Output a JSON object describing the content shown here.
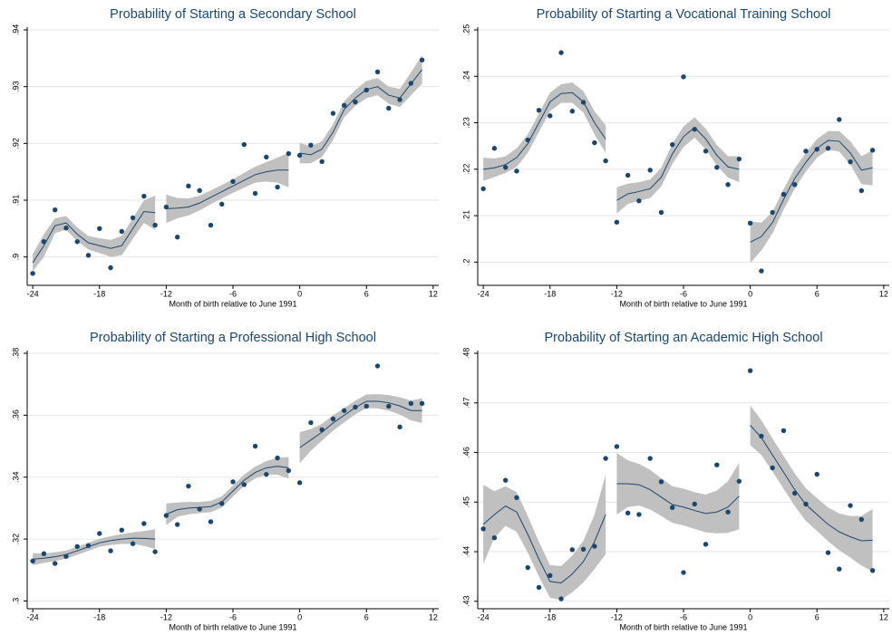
{
  "chart_data": [
    {
      "type": "scatter",
      "title": "Probability of Starting a Secondary School",
      "x_label": "Month of birth relative to June 1991",
      "x": [
        -24,
        -23,
        -22,
        -21,
        -20,
        -19,
        -18,
        -17,
        -16,
        -15,
        -14,
        -13,
        -12,
        -11,
        -10,
        -9,
        -8,
        -7,
        -6,
        -5,
        -4,
        -3,
        -2,
        -1,
        0,
        1,
        2,
        3,
        4,
        5,
        6,
        7,
        8,
        9,
        10,
        11
      ],
      "values": [
        0.8971,
        0.9027,
        0.9083,
        0.9051,
        0.9027,
        0.9003,
        0.905,
        0.8981,
        0.9045,
        0.9069,
        0.9107,
        0.9056,
        0.9088,
        0.9035,
        0.9125,
        0.9117,
        0.9056,
        0.9093,
        0.9133,
        0.9198,
        0.9112,
        0.9176,
        0.9123,
        0.9182,
        0.9179,
        0.9197,
        0.9168,
        0.9253,
        0.9267,
        0.9273,
        0.9294,
        0.9326,
        0.9262,
        0.9277,
        0.9306,
        0.9347
      ],
      "fit_x": [
        -24,
        -23,
        -22,
        -21,
        -20,
        -19,
        -18,
        -17,
        -16,
        -15,
        -14,
        -13,
        null,
        -12,
        -11,
        -10,
        -9,
        -8,
        -7,
        -6,
        -5,
        -4,
        -3,
        -2,
        -1,
        null,
        0,
        1,
        2,
        3,
        4,
        5,
        6,
        7,
        8,
        9,
        10,
        11
      ],
      "fit": [
        0.899,
        0.902,
        0.9055,
        0.906,
        0.904,
        0.9025,
        0.902,
        0.9015,
        0.902,
        0.905,
        0.908,
        0.9078,
        null,
        0.9085,
        0.9086,
        0.9088,
        0.9095,
        0.9105,
        0.9115,
        0.9125,
        0.9135,
        0.9145,
        0.915,
        0.9153,
        0.9153,
        null,
        0.9183,
        0.918,
        0.919,
        0.922,
        0.926,
        0.928,
        0.9295,
        0.93,
        0.9285,
        0.928,
        0.9305,
        0.933
      ],
      "ci_low": [
        0.8975,
        0.9,
        0.9042,
        0.9048,
        0.9028,
        0.9013,
        0.9007,
        0.9,
        0.9003,
        0.9032,
        0.906,
        0.9048,
        null,
        0.906,
        0.9068,
        0.9073,
        0.9082,
        0.9093,
        0.9103,
        0.9113,
        0.9122,
        0.9131,
        0.9133,
        0.9131,
        0.9123,
        null,
        0.9165,
        0.9165,
        0.9176,
        0.9206,
        0.9246,
        0.9266,
        0.928,
        0.9285,
        0.927,
        0.9264,
        0.9285,
        0.9305
      ],
      "ci_high": [
        0.9005,
        0.904,
        0.9068,
        0.9072,
        0.9052,
        0.9037,
        0.9033,
        0.903,
        0.9037,
        0.9068,
        0.91,
        0.9108,
        null,
        0.911,
        0.9104,
        0.9103,
        0.9108,
        0.9117,
        0.9127,
        0.9137,
        0.9148,
        0.9159,
        0.9167,
        0.9175,
        0.9183,
        null,
        0.9201,
        0.9195,
        0.9204,
        0.9234,
        0.9274,
        0.9294,
        0.931,
        0.9315,
        0.93,
        0.9296,
        0.9325,
        0.9355
      ],
      "xlim": [
        -24.5,
        12.5
      ],
      "xticks": [
        -24,
        -18,
        -12,
        -6,
        0,
        6,
        12
      ],
      "ylim": [
        0.895,
        0.94
      ],
      "yticks": [
        {
          "value": 0.9,
          "label": ".9"
        },
        {
          "value": 0.91,
          "label": ".91"
        },
        {
          "value": 0.92,
          "label": ".92"
        },
        {
          "value": 0.93,
          "label": ".93"
        },
        {
          "value": 0.94,
          "label": ".94"
        }
      ],
      "grid": true,
      "color": "#1a476f",
      "fit_color": "#1a476f",
      "band_color": "#c0c0c0"
    },
    {
      "type": "scatter",
      "title": "Probability of Starting a Vocational Training School",
      "x_label": "Month of birth relative to June 1991",
      "x": [
        -24,
        -23,
        -22,
        -21,
        -20,
        -19,
        -18,
        -17,
        -16,
        -15,
        -14,
        -13,
        -12,
        -11,
        -10,
        -9,
        -8,
        -7,
        -6,
        -5,
        -4,
        -3,
        -2,
        -1,
        0,
        1,
        2,
        3,
        4,
        5,
        6,
        7,
        8,
        9,
        10,
        11
      ],
      "values": [
        0.2158,
        0.2245,
        0.2204,
        0.2196,
        0.2263,
        0.2327,
        0.2315,
        0.2451,
        0.2325,
        0.2344,
        0.2257,
        0.2218,
        0.2086,
        0.2187,
        0.2132,
        0.2198,
        0.2107,
        0.2253,
        0.2399,
        0.2286,
        0.2239,
        0.2204,
        0.2167,
        0.2222,
        0.2084,
        0.1981,
        0.2107,
        0.2146,
        0.2167,
        0.2239,
        0.2243,
        0.2245,
        0.2307,
        0.2216,
        0.2154,
        0.2241
      ],
      "fit_x": [
        -24,
        -23,
        -22,
        -21,
        -20,
        -19,
        -18,
        -17,
        -16,
        -15,
        -14,
        -13,
        null,
        -12,
        -11,
        -10,
        -9,
        -8,
        -7,
        -6,
        -5,
        -4,
        -3,
        -2,
        -1,
        null,
        0,
        1,
        2,
        3,
        4,
        5,
        6,
        7,
        8,
        9,
        10,
        11
      ],
      "fit": [
        0.22,
        0.2203,
        0.221,
        0.2225,
        0.2255,
        0.23,
        0.2345,
        0.2363,
        0.2365,
        0.2345,
        0.23,
        0.2265,
        null,
        0.2133,
        0.2147,
        0.2152,
        0.2158,
        0.2183,
        0.2233,
        0.227,
        0.229,
        0.2265,
        0.223,
        0.2205,
        0.22,
        null,
        0.2043,
        0.2055,
        0.2085,
        0.2135,
        0.218,
        0.2215,
        0.2245,
        0.2262,
        0.226,
        0.2235,
        0.2198,
        0.2203
      ],
      "ci_low": [
        0.2175,
        0.2183,
        0.2192,
        0.2205,
        0.2235,
        0.228,
        0.2325,
        0.2343,
        0.2343,
        0.2322,
        0.2275,
        0.2235,
        null,
        0.2105,
        0.2125,
        0.2132,
        0.2138,
        0.2163,
        0.2211,
        0.2248,
        0.2268,
        0.2243,
        0.2208,
        0.2182,
        0.2172,
        null,
        0.1998,
        0.2025,
        0.2062,
        0.2113,
        0.2158,
        0.2195,
        0.2225,
        0.2242,
        0.2238,
        0.221,
        0.2168,
        0.2165
      ],
      "ci_high": [
        0.2225,
        0.2223,
        0.2228,
        0.2245,
        0.2275,
        0.232,
        0.2365,
        0.2383,
        0.2387,
        0.2368,
        0.2325,
        0.2295,
        null,
        0.2161,
        0.2169,
        0.2172,
        0.2178,
        0.2203,
        0.2255,
        0.2292,
        0.2312,
        0.2287,
        0.2252,
        0.2228,
        0.2228,
        null,
        0.2088,
        0.2085,
        0.2108,
        0.2157,
        0.2202,
        0.2235,
        0.2265,
        0.2282,
        0.2282,
        0.226,
        0.2228,
        0.2241
      ],
      "xlim": [
        -24.5,
        12.5
      ],
      "xticks": [
        -24,
        -18,
        -12,
        -6,
        0,
        6,
        12
      ],
      "ylim": [
        0.195,
        0.25
      ],
      "yticks": [
        {
          "value": 0.2,
          "label": ".2"
        },
        {
          "value": 0.21,
          "label": ".21"
        },
        {
          "value": 0.22,
          "label": ".22"
        },
        {
          "value": 0.23,
          "label": ".23"
        },
        {
          "value": 0.24,
          "label": ".24"
        },
        {
          "value": 0.25,
          "label": ".25"
        }
      ],
      "grid": true,
      "color": "#1a476f",
      "fit_color": "#1a476f",
      "band_color": "#c0c0c0"
    },
    {
      "type": "scatter",
      "title": "Probability of Starting a Professional High School",
      "x_label": "Month of birth relative to June 1991",
      "x": [
        -24,
        -23,
        -22,
        -21,
        -20,
        -19,
        -18,
        -17,
        -16,
        -15,
        -14,
        -13,
        -12,
        -11,
        -10,
        -9,
        -8,
        -7,
        -6,
        -5,
        -4,
        -3,
        -2,
        -1,
        0,
        1,
        2,
        3,
        4,
        5,
        6,
        7,
        8,
        9,
        10,
        11
      ],
      "values": [
        0.3129,
        0.3153,
        0.3121,
        0.3144,
        0.3176,
        0.3179,
        0.3218,
        0.3162,
        0.3229,
        0.3185,
        0.325,
        0.3159,
        0.3276,
        0.3247,
        0.3371,
        0.3297,
        0.3256,
        0.3315,
        0.3385,
        0.3376,
        0.35,
        0.3409,
        0.3462,
        0.3421,
        0.3382,
        0.3576,
        0.3553,
        0.3588,
        0.3615,
        0.3626,
        0.3629,
        0.3759,
        0.3629,
        0.3562,
        0.3638,
        0.3638
      ],
      "fit_x": [
        -24,
        -23,
        -22,
        -21,
        -20,
        -19,
        -18,
        -17,
        -16,
        -15,
        -14,
        -13,
        null,
        -12,
        -11,
        -10,
        -9,
        -8,
        -7,
        -6,
        -5,
        -4,
        -3,
        -2,
        -1,
        null,
        0,
        1,
        2,
        3,
        4,
        5,
        6,
        7,
        8,
        9,
        10,
        11
      ],
      "fit": [
        0.3135,
        0.3138,
        0.3143,
        0.315,
        0.3162,
        0.3175,
        0.3188,
        0.3195,
        0.32,
        0.3203,
        0.3202,
        0.32,
        null,
        0.328,
        0.3295,
        0.33,
        0.3302,
        0.3305,
        0.332,
        0.3355,
        0.339,
        0.3415,
        0.343,
        0.3435,
        0.343,
        null,
        0.3495,
        0.352,
        0.3545,
        0.3575,
        0.36,
        0.3625,
        0.3645,
        0.3645,
        0.364,
        0.363,
        0.3615,
        0.3615
      ],
      "ci_low": [
        0.3115,
        0.3123,
        0.3129,
        0.3137,
        0.3149,
        0.3162,
        0.3175,
        0.3181,
        0.3184,
        0.3184,
        0.3178,
        0.3168,
        null,
        0.3245,
        0.3272,
        0.328,
        0.3284,
        0.3287,
        0.3302,
        0.3337,
        0.3372,
        0.3396,
        0.3408,
        0.3408,
        0.3395,
        null,
        0.3445,
        0.3485,
        0.3518,
        0.355,
        0.3577,
        0.3603,
        0.3623,
        0.3622,
        0.3615,
        0.3602,
        0.3583,
        0.3575
      ],
      "ci_high": [
        0.3155,
        0.3153,
        0.3157,
        0.3163,
        0.3175,
        0.3188,
        0.3201,
        0.3209,
        0.3216,
        0.3222,
        0.3226,
        0.3232,
        null,
        0.3315,
        0.3318,
        0.332,
        0.332,
        0.3323,
        0.3338,
        0.3373,
        0.3408,
        0.3434,
        0.3452,
        0.3462,
        0.3465,
        null,
        0.3545,
        0.3555,
        0.3572,
        0.36,
        0.3623,
        0.3647,
        0.3667,
        0.3668,
        0.3665,
        0.3658,
        0.3647,
        0.3655
      ],
      "xlim": [
        -24.5,
        12.5
      ],
      "xticks": [
        -24,
        -18,
        -12,
        -6,
        0,
        6,
        12
      ],
      "ylim": [
        0.2975,
        0.38
      ],
      "yticks": [
        {
          "value": 0.3,
          "label": ".3"
        },
        {
          "value": 0.32,
          "label": ".32"
        },
        {
          "value": 0.34,
          "label": ".34"
        },
        {
          "value": 0.36,
          "label": ".36"
        },
        {
          "value": 0.38,
          "label": ".38"
        }
      ],
      "grid": true,
      "color": "#1a476f",
      "fit_color": "#1a476f",
      "band_color": "#c0c0c0"
    },
    {
      "type": "scatter",
      "title": "Probability of Starting an Academic High School",
      "x_label": "Month of birth relative to June 1991",
      "x": [
        -24,
        -23,
        -22,
        -21,
        -20,
        -19,
        -18,
        -17,
        -16,
        -15,
        -14,
        -13,
        -12,
        -11,
        -10,
        -9,
        -8,
        -7,
        -6,
        -5,
        -4,
        -3,
        -2,
        -1,
        0,
        1,
        2,
        3,
        4,
        5,
        6,
        7,
        8,
        9,
        10,
        11
      ],
      "values": [
        0.4446,
        0.4428,
        0.4544,
        0.4509,
        0.4368,
        0.4328,
        0.4352,
        0.4305,
        0.4404,
        0.4405,
        0.4411,
        0.4588,
        0.4612,
        0.4478,
        0.4475,
        0.4588,
        0.4541,
        0.4489,
        0.4358,
        0.4496,
        0.4415,
        0.4575,
        0.448,
        0.4542,
        0.4765,
        0.4633,
        0.4569,
        0.4644,
        0.4518,
        0.4496,
        0.4556,
        0.4398,
        0.4365,
        0.4493,
        0.4465,
        0.4362
      ],
      "fit_x": [
        -24,
        -23,
        -22,
        -21,
        -20,
        -19,
        -18,
        -17,
        -16,
        -15,
        -14,
        -13,
        null,
        -12,
        -11,
        -10,
        -9,
        -8,
        -7,
        -6,
        -5,
        -4,
        -3,
        -2,
        -1,
        null,
        0,
        1,
        2,
        3,
        4,
        5,
        6,
        7,
        8,
        9,
        10,
        11
      ],
      "fit": [
        0.4455,
        0.4475,
        0.4492,
        0.448,
        0.4435,
        0.4385,
        0.434,
        0.4337,
        0.4355,
        0.438,
        0.442,
        0.4475,
        null,
        0.4537,
        0.4537,
        0.4535,
        0.4525,
        0.451,
        0.4495,
        0.449,
        0.4483,
        0.4477,
        0.448,
        0.449,
        0.4512,
        null,
        0.4655,
        0.463,
        0.4595,
        0.456,
        0.4525,
        0.4495,
        0.4475,
        0.4455,
        0.444,
        0.443,
        0.4422,
        0.4423
      ],
      "ci_low": [
        0.4375,
        0.4428,
        0.4452,
        0.444,
        0.4398,
        0.435,
        0.4307,
        0.4303,
        0.4318,
        0.4338,
        0.4365,
        0.4395,
        null,
        0.4475,
        0.449,
        0.4493,
        0.4485,
        0.4472,
        0.4458,
        0.4453,
        0.4446,
        0.4439,
        0.4437,
        0.4438,
        0.4445,
        null,
        0.4615,
        0.4595,
        0.4562,
        0.4527,
        0.4492,
        0.4462,
        0.4442,
        0.4421,
        0.4403,
        0.4388,
        0.4372,
        0.436
      ],
      "ci_high": [
        0.4535,
        0.4522,
        0.4532,
        0.452,
        0.4472,
        0.442,
        0.4373,
        0.4371,
        0.4392,
        0.4422,
        0.4475,
        0.4555,
        null,
        0.4599,
        0.4584,
        0.4577,
        0.4565,
        0.4548,
        0.4532,
        0.4527,
        0.452,
        0.4515,
        0.4523,
        0.4542,
        0.4579,
        null,
        0.4695,
        0.4665,
        0.4628,
        0.4593,
        0.4558,
        0.4528,
        0.4508,
        0.4489,
        0.4477,
        0.4472,
        0.4472,
        0.4486
      ],
      "xlim": [
        -24.5,
        12.5
      ],
      "xticks": [
        -24,
        -18,
        -12,
        -6,
        0,
        6,
        12
      ],
      "ylim": [
        0.4285,
        0.48
      ],
      "yticks": [
        {
          "value": 0.43,
          "label": ".43"
        },
        {
          "value": 0.44,
          "label": ".44"
        },
        {
          "value": 0.45,
          "label": ".45"
        },
        {
          "value": 0.46,
          "label": ".46"
        },
        {
          "value": 0.47,
          "label": ".47"
        },
        {
          "value": 0.48,
          "label": ".48"
        }
      ],
      "grid": true,
      "color": "#1a476f",
      "fit_color": "#1a476f",
      "band_color": "#c0c0c0"
    }
  ]
}
